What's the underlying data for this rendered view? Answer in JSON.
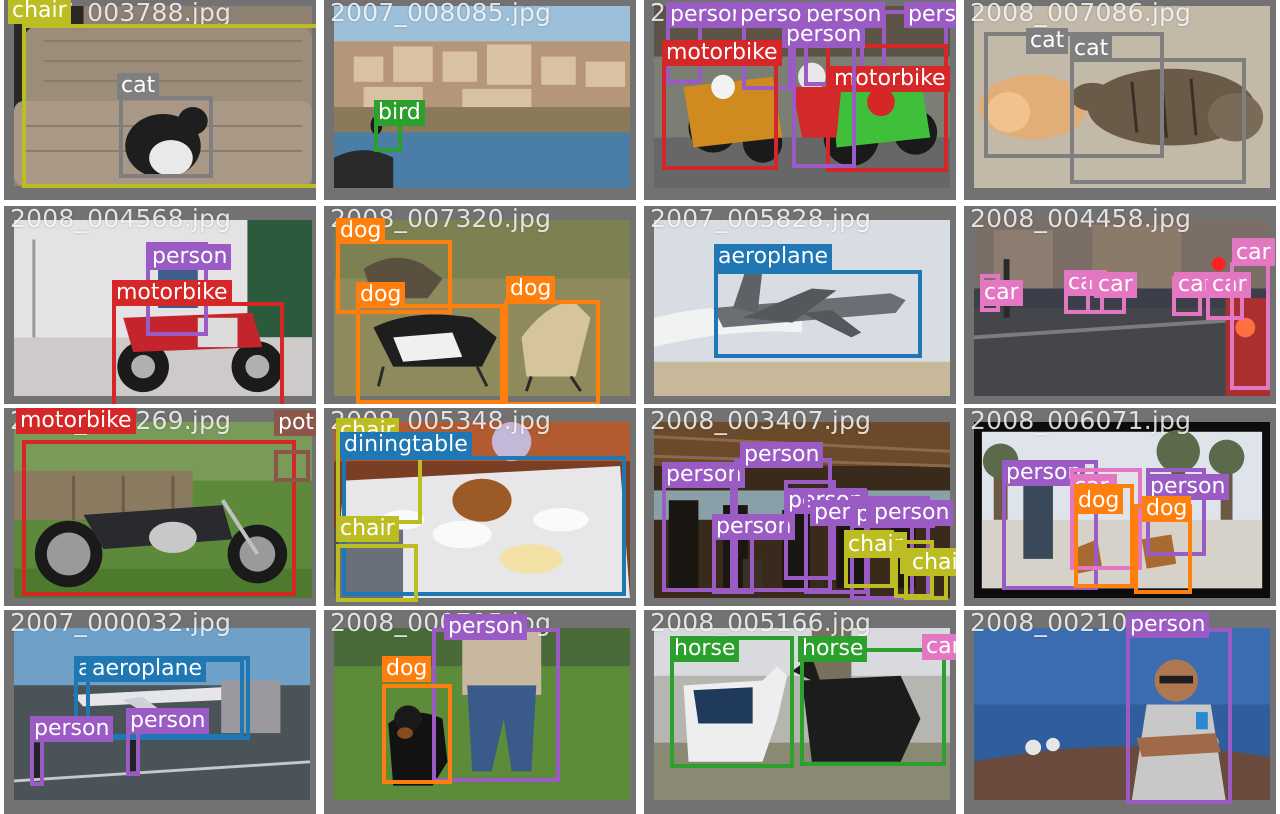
{
  "colors": {
    "person": "#9a5cc4",
    "cat": "#7f7f7f",
    "chair": "#bcbd22",
    "bird": "#2ca02c",
    "horse": "#2ca02c",
    "motorbike": "#d62728",
    "dog": "#ff7f0e",
    "aeroplane": "#1f77b4",
    "diningtable": "#1f77b4",
    "car": "#e377c2",
    "pottedplant": "#8c564b"
  },
  "tiles": [
    {
      "file": "2007_003788.jpg",
      "scene": "sofa-icon",
      "detections": [
        {
          "label": "chair",
          "cls": "chair",
          "color": "#bcbd22"
        },
        {
          "label": "cat",
          "cls": "cat",
          "color": "#7f7f7f"
        }
      ]
    },
    {
      "file": "2007_008085.jpg",
      "scene": "coastal-town-icon",
      "detections": [
        {
          "label": "bird",
          "cls": "bird",
          "color": "#2ca02c"
        }
      ]
    },
    {
      "file": "2007_003788.jpg",
      "scene": "motorbike-race-icon",
      "detections": [
        {
          "label": "person",
          "cls": "person",
          "color": "#9a5cc4"
        },
        {
          "label": "person",
          "cls": "person",
          "color": "#9a5cc4"
        },
        {
          "label": "person",
          "cls": "person",
          "color": "#9a5cc4"
        },
        {
          "label": "person",
          "cls": "person",
          "color": "#9a5cc4"
        },
        {
          "label": "motorbike",
          "cls": "motorbike",
          "color": "#d62728"
        },
        {
          "label": "motorbike",
          "cls": "motorbike",
          "color": "#d62728"
        },
        {
          "label": "person",
          "cls": "person",
          "color": "#9a5cc4"
        }
      ]
    },
    {
      "file": "2008_007086.jpg",
      "scene": "kittens-icon",
      "detections": [
        {
          "label": "cat",
          "cls": "cat",
          "color": "#7f7f7f"
        },
        {
          "label": "cat",
          "cls": "cat",
          "color": "#7f7f7f"
        }
      ]
    },
    {
      "file": "2008_004568.jpg",
      "scene": "parked-motorbike-icon",
      "detections": [
        {
          "label": "person",
          "cls": "person",
          "color": "#9a5cc4"
        },
        {
          "label": "motorbike",
          "cls": "motorbike",
          "color": "#d62728"
        }
      ]
    },
    {
      "file": "2008_007320.jpg",
      "scene": "running-dogs-icon",
      "detections": [
        {
          "label": "dog",
          "cls": "dog",
          "color": "#ff7f0e"
        },
        {
          "label": "dog",
          "cls": "dog",
          "color": "#ff7f0e"
        },
        {
          "label": "dog",
          "cls": "dog",
          "color": "#ff7f0e"
        }
      ]
    },
    {
      "file": "2007_005828.jpg",
      "scene": "fighter-jet-icon",
      "detections": [
        {
          "label": "aeroplane",
          "cls": "aeroplane",
          "color": "#1f77b4"
        }
      ]
    },
    {
      "file": "2008_004458.jpg",
      "scene": "night-street-icon",
      "detections": [
        {
          "label": "car",
          "cls": "car",
          "color": "#e377c2"
        },
        {
          "label": "car",
          "cls": "car",
          "color": "#e377c2"
        },
        {
          "label": "car",
          "cls": "car",
          "color": "#e377c2"
        },
        {
          "label": "car",
          "cls": "car",
          "color": "#e377c2"
        },
        {
          "label": "car",
          "cls": "car",
          "color": "#e377c2"
        },
        {
          "label": "car",
          "cls": "car",
          "color": "#e377c2"
        },
        {
          "label": "car",
          "cls": "car",
          "color": "#e377c2"
        }
      ]
    },
    {
      "file": "2008_002269.jpg",
      "scene": "chopper-motorbike-icon",
      "detections": [
        {
          "label": "motorbike",
          "cls": "motorbike",
          "color": "#d62728"
        },
        {
          "label": "pot",
          "cls": "pottedplant",
          "color": "#8c564b"
        }
      ]
    },
    {
      "file": "2008_005348.jpg",
      "scene": "dinner-table-icon",
      "detections": [
        {
          "label": "chair",
          "cls": "chair",
          "color": "#bcbd22"
        },
        {
          "label": "diningtable",
          "cls": "diningtable",
          "color": "#1f77b4"
        },
        {
          "label": "chair",
          "cls": "chair",
          "color": "#bcbd22"
        }
      ]
    },
    {
      "file": "2008_003407.jpg",
      "scene": "pavilion-crowd-icon",
      "detections": [
        {
          "label": "person",
          "cls": "person",
          "color": "#9a5cc4"
        },
        {
          "label": "person",
          "cls": "person",
          "color": "#9a5cc4"
        },
        {
          "label": "person",
          "cls": "person",
          "color": "#9a5cc4"
        },
        {
          "label": "person",
          "cls": "person",
          "color": "#9a5cc4"
        },
        {
          "label": "person",
          "cls": "person",
          "color": "#9a5cc4"
        },
        {
          "label": "person",
          "cls": "person",
          "color": "#9a5cc4"
        },
        {
          "label": "person",
          "cls": "person",
          "color": "#9a5cc4"
        },
        {
          "label": "chair",
          "cls": "chair",
          "color": "#bcbd22"
        },
        {
          "label": "chair",
          "cls": "chair",
          "color": "#bcbd22"
        },
        {
          "label": "chair",
          "cls": "chair",
          "color": "#bcbd22"
        }
      ]
    },
    {
      "file": "2008_006071.jpg",
      "scene": "park-dogs-icon",
      "detections": [
        {
          "label": "person",
          "cls": "person",
          "color": "#9a5cc4"
        },
        {
          "label": "car",
          "cls": "car",
          "color": "#e377c2"
        },
        {
          "label": "car",
          "cls": "car",
          "color": "#e377c2"
        },
        {
          "label": "car",
          "cls": "car",
          "color": "#e377c2"
        },
        {
          "label": "person",
          "cls": "person",
          "color": "#9a5cc4"
        },
        {
          "label": "dog",
          "cls": "dog",
          "color": "#ff7f0e"
        },
        {
          "label": "dog",
          "cls": "dog",
          "color": "#ff7f0e"
        }
      ]
    },
    {
      "file": "2007_000032.jpg",
      "scene": "airport-apron-icon",
      "detections": [
        {
          "label": "aeroplane",
          "cls": "aeroplane",
          "color": "#1f77b4"
        },
        {
          "label": "aeroplane",
          "cls": "aeroplane",
          "color": "#1f77b4"
        },
        {
          "label": "person",
          "cls": "person",
          "color": "#9a5cc4"
        },
        {
          "label": "person",
          "cls": "person",
          "color": "#9a5cc4"
        }
      ]
    },
    {
      "file": "2008_000795.jpg",
      "scene": "rottweiler-icon",
      "detections": [
        {
          "label": "person",
          "cls": "person",
          "color": "#9a5cc4"
        },
        {
          "label": "dog",
          "cls": "dog",
          "color": "#ff7f0e"
        }
      ]
    },
    {
      "file": "2008_005166.jpg",
      "scene": "ponies-icon",
      "detections": [
        {
          "label": "horse",
          "cls": "horse",
          "color": "#2ca02c"
        },
        {
          "label": "horse",
          "cls": "horse",
          "color": "#2ca02c"
        },
        {
          "label": "car",
          "cls": "car",
          "color": "#e377c2"
        }
      ]
    },
    {
      "file": "2008_002107.jpg",
      "scene": "observatory-man-icon",
      "detections": [
        {
          "label": "person",
          "cls": "person",
          "color": "#9a5cc4"
        }
      ]
    }
  ]
}
